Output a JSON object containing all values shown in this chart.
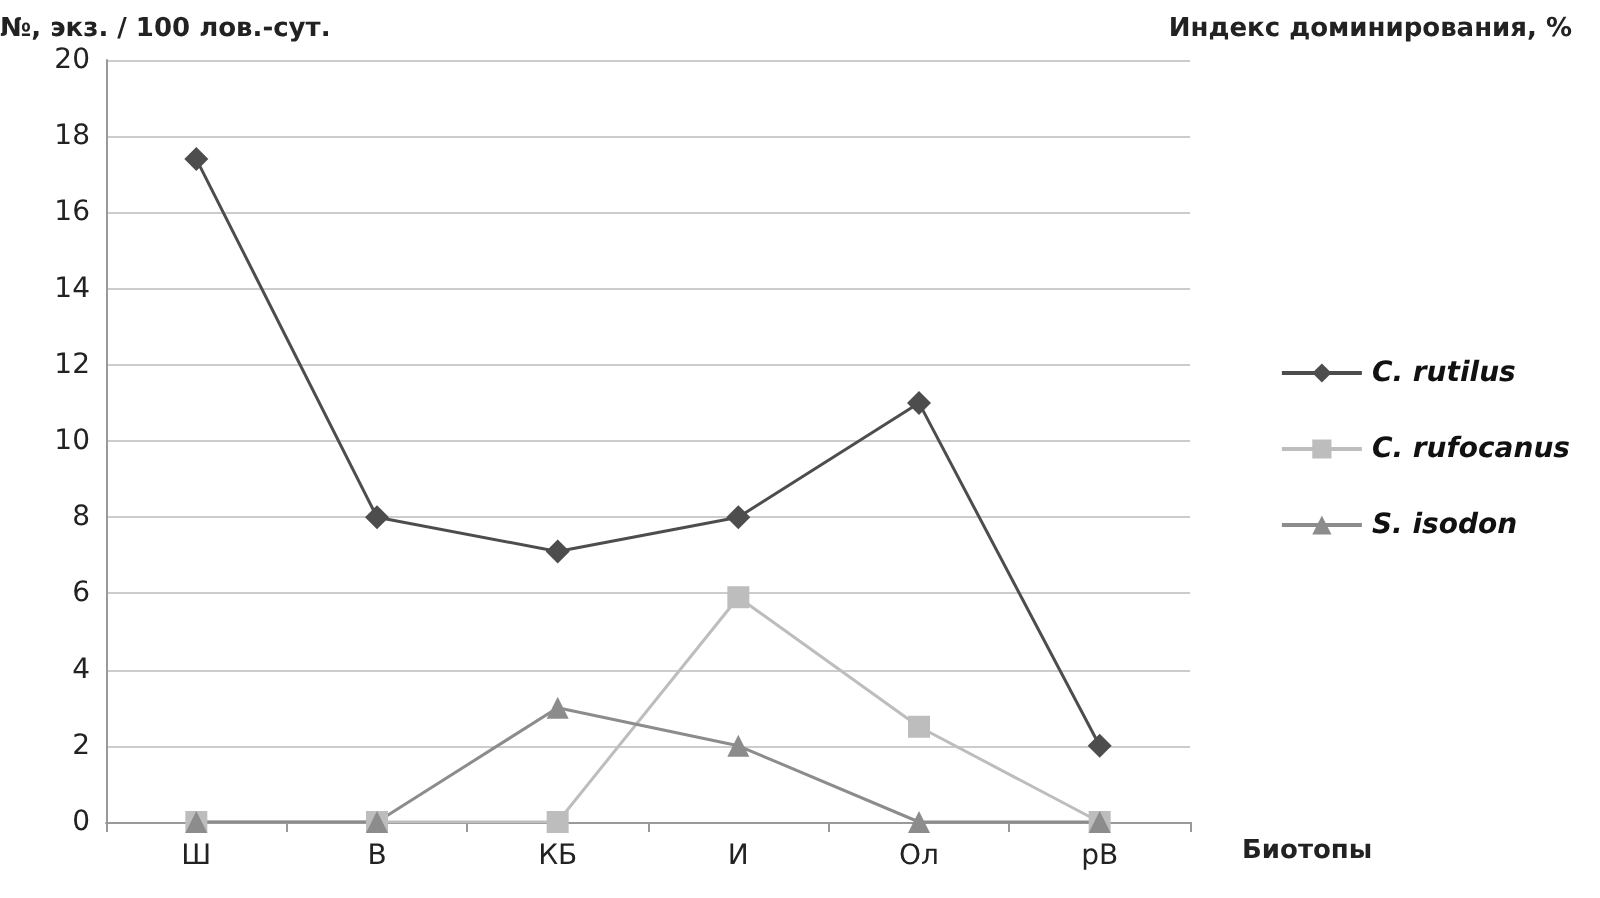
{
  "chart_data": {
    "type": "line",
    "ylabel": "№, экз. / 100 лов.-сут.",
    "xlabel": "Биотопы",
    "annotations": [
      "Индекс доминирования, %"
    ],
    "categories": [
      "Ш",
      "В",
      "КБ",
      "И",
      "Ол",
      "рВ"
    ],
    "series": [
      {
        "name": "C. rutilus",
        "color": "#4d4d4d",
        "marker": "diamond",
        "values": [
          17.4,
          8,
          7.1,
          8,
          11,
          2
        ]
      },
      {
        "name": "C. rufocanus",
        "color": "#bdbdbd",
        "marker": "square",
        "values": [
          0,
          0,
          0,
          5.9,
          2.5,
          0
        ]
      },
      {
        "name": "S. isodon",
        "color": "#8c8c8c",
        "marker": "triangle",
        "values": [
          0,
          0,
          3,
          2,
          0,
          0
        ]
      }
    ],
    "ylim": [
      0,
      20
    ],
    "yticks": [
      0,
      2,
      4,
      6,
      8,
      10,
      12,
      14,
      16,
      18,
      20
    ],
    "grid": "y",
    "legend": "right",
    "line_style": "solid"
  }
}
